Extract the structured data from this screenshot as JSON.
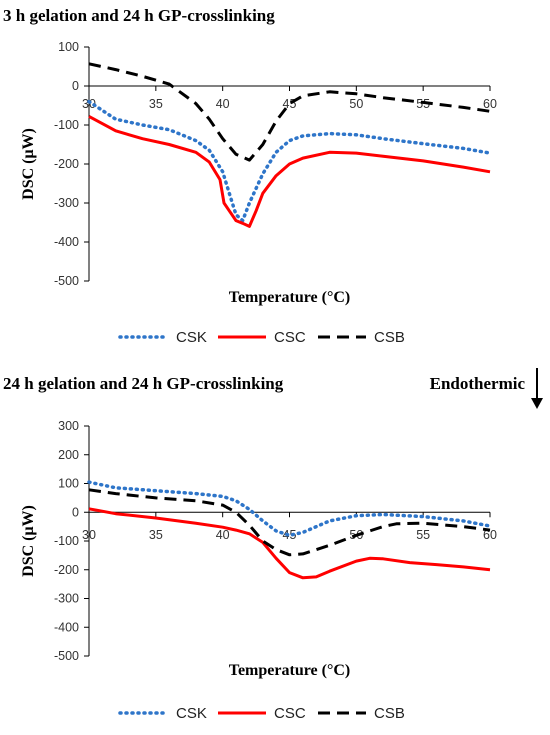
{
  "annotation": "Endothermic",
  "colors": {
    "CSK": "#2e75c9",
    "CSC": "#ff0000",
    "CSB": "#000000"
  },
  "chart_data": [
    {
      "type": "line",
      "title": "3 h gelation and 24 h GP-crosslinking",
      "xlabel": "Temperature (°C)",
      "ylabel": "DSC (μW)",
      "xlim": [
        30,
        60
      ],
      "ylim": [
        -500,
        100
      ],
      "x_ticks": [
        30,
        35,
        40,
        45,
        50,
        55,
        60
      ],
      "y_ticks": [
        100,
        0,
        -100,
        -200,
        -300,
        -400,
        -500
      ],
      "legend_position": "bottom",
      "series": [
        {
          "name": "CSK",
          "style": "dotted",
          "x": [
            30,
            32,
            34,
            36,
            38,
            39,
            40,
            40.5,
            41,
            41.5,
            42,
            43,
            44,
            45,
            46,
            48,
            50,
            52,
            55,
            58,
            60
          ],
          "y": [
            -40,
            -85,
            -100,
            -112,
            -140,
            -165,
            -220,
            -275,
            -330,
            -345,
            -300,
            -225,
            -170,
            -140,
            -128,
            -122,
            -125,
            -135,
            -148,
            -160,
            -172
          ]
        },
        {
          "name": "CSC",
          "style": "solid",
          "x": [
            30,
            32,
            34,
            36,
            38,
            39,
            39.8,
            40.1,
            40.5,
            41,
            41.5,
            42,
            42.5,
            43,
            44,
            45,
            46,
            48,
            50,
            52,
            55,
            58,
            60
          ],
          "y": [
            -78,
            -115,
            -135,
            -150,
            -170,
            -195,
            -240,
            -300,
            -320,
            -345,
            -352,
            -360,
            -320,
            -275,
            -230,
            -200,
            -185,
            -170,
            -172,
            -180,
            -192,
            -208,
            -220
          ]
        },
        {
          "name": "CSB",
          "style": "dashed",
          "x": [
            30,
            32,
            34,
            36,
            38,
            39,
            40,
            41,
            42,
            43,
            44,
            45,
            46,
            48,
            50,
            52,
            55,
            58,
            60
          ],
          "y": [
            57,
            42,
            25,
            5,
            -45,
            -85,
            -135,
            -175,
            -190,
            -150,
            -90,
            -45,
            -25,
            -15,
            -20,
            -30,
            -42,
            -55,
            -65
          ]
        }
      ]
    },
    {
      "type": "line",
      "title": "24 h gelation and 24 h GP-crosslinking",
      "xlabel": "Temperature (°C)",
      "ylabel": "DSC (μW)",
      "xlim": [
        30,
        60
      ],
      "ylim": [
        -500,
        300
      ],
      "x_ticks": [
        30,
        35,
        40,
        45,
        50,
        55,
        60
      ],
      "y_ticks": [
        300,
        200,
        100,
        0,
        -100,
        -200,
        -300,
        -400,
        -500
      ],
      "legend_position": "bottom",
      "series": [
        {
          "name": "CSK",
          "style": "dotted",
          "x": [
            30,
            32,
            35,
            38,
            40,
            41,
            42,
            43,
            44,
            45,
            46,
            48,
            50,
            52,
            55,
            58,
            60
          ],
          "y": [
            105,
            85,
            75,
            65,
            55,
            40,
            10,
            -30,
            -65,
            -80,
            -70,
            -30,
            -12,
            -8,
            -15,
            -30,
            -48
          ]
        },
        {
          "name": "CSC",
          "style": "solid",
          "x": [
            30,
            32,
            35,
            38,
            40,
            41,
            42,
            43,
            44,
            45,
            46,
            47,
            48,
            50,
            51,
            52,
            54,
            56,
            58,
            60
          ],
          "y": [
            12,
            -5,
            -20,
            -38,
            -52,
            -62,
            -75,
            -105,
            -160,
            -210,
            -228,
            -225,
            -205,
            -170,
            -160,
            -162,
            -175,
            -182,
            -190,
            -200
          ]
        },
        {
          "name": "CSB",
          "style": "dashed",
          "x": [
            30,
            32,
            35,
            38,
            40,
            41,
            42,
            43,
            44,
            45,
            46,
            48,
            50,
            52,
            53,
            55,
            58,
            60
          ],
          "y": [
            78,
            65,
            50,
            40,
            25,
            0,
            -45,
            -100,
            -130,
            -148,
            -145,
            -115,
            -80,
            -50,
            -40,
            -38,
            -50,
            -62
          ]
        }
      ]
    }
  ]
}
